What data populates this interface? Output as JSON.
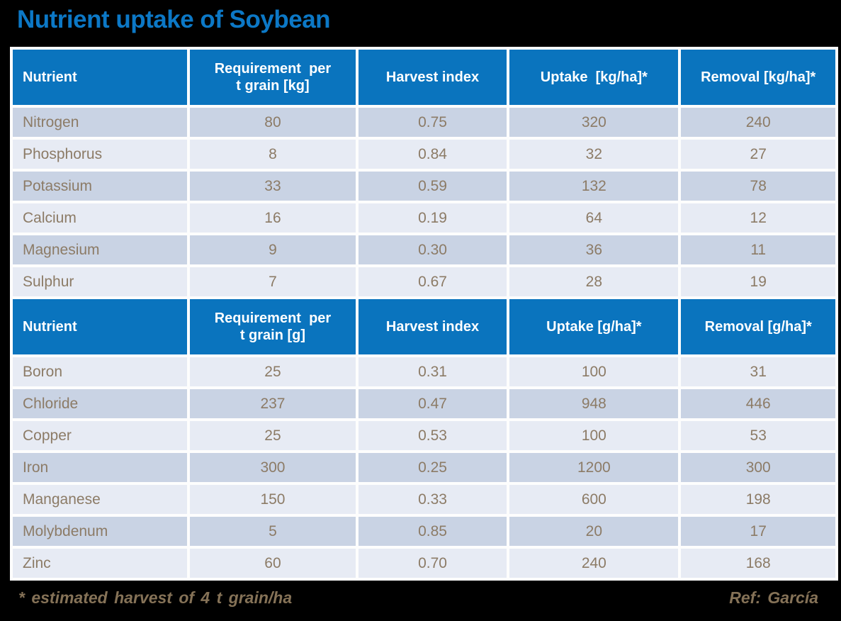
{
  "title": "Nutrient uptake of Soybean",
  "footnote": "* estimated harvest of 4 t grain/ha",
  "reference": "Ref: García",
  "colors": {
    "page_bg": "#000000",
    "title_text": "#0C78C6",
    "header_bg": "#0A74BE",
    "header_text": "#FFFFFF",
    "row_dark": "#C9D3E4",
    "row_light": "#E7EBF4",
    "data_text": "#8C7B66",
    "footer_text": "#857257",
    "grid": "#FDFDFD"
  },
  "chart_data": {
    "type": "table",
    "title": "Nutrient uptake of Soybean",
    "sections": [
      {
        "headers": [
          "Nutrient",
          "Requirement  per\nt grain [kg]",
          "Harvest index",
          "Uptake  [kg/ha]*",
          "Removal [kg/ha]*"
        ],
        "rows": [
          {
            "nutrient": "Nitrogen",
            "values": [
              "80",
              "0.75",
              "320",
              "240"
            ]
          },
          {
            "nutrient": "Phosphorus",
            "values": [
              "8",
              "0.84",
              "32",
              "27"
            ]
          },
          {
            "nutrient": "Potassium",
            "values": [
              "33",
              "0.59",
              "132",
              "78"
            ]
          },
          {
            "nutrient": "Calcium",
            "values": [
              "16",
              "0.19",
              "64",
              "12"
            ]
          },
          {
            "nutrient": "Magnesium",
            "values": [
              "9",
              "0.30",
              "36",
              "11"
            ]
          },
          {
            "nutrient": "Sulphur",
            "values": [
              "7",
              "0.67",
              "28",
              "19"
            ]
          }
        ]
      },
      {
        "headers": [
          "Nutrient",
          "Requirement  per\nt grain [g]",
          "Harvest index",
          "Uptake [g/ha]*",
          "Removal [g/ha]*"
        ],
        "rows": [
          {
            "nutrient": "Boron",
            "values": [
              "25",
              "0.31",
              "100",
              "31"
            ]
          },
          {
            "nutrient": "Chloride",
            "values": [
              "237",
              "0.47",
              "948",
              "446"
            ]
          },
          {
            "nutrient": "Copper",
            "values": [
              "25",
              "0.53",
              "100",
              "53"
            ]
          },
          {
            "nutrient": "Iron",
            "values": [
              "300",
              "0.25",
              "1200",
              "300"
            ]
          },
          {
            "nutrient": "Manganese",
            "values": [
              "150",
              "0.33",
              "600",
              "198"
            ]
          },
          {
            "nutrient": "Molybdenum",
            "values": [
              "5",
              "0.85",
              "20",
              "17"
            ]
          },
          {
            "nutrient": "Zinc",
            "values": [
              "60",
              "0.70",
              "240",
              "168"
            ]
          }
        ]
      }
    ],
    "column_widths_pct": [
      21.5,
      20.4,
      18.3,
      20.8,
      19.0
    ]
  }
}
